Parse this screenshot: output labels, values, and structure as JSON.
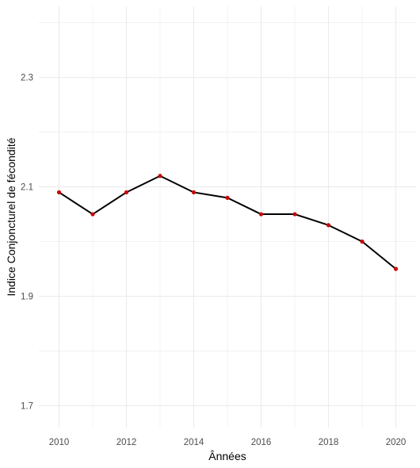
{
  "chart_data": {
    "type": "line",
    "title": "",
    "xlabel": "Ânnées",
    "ylabel": "Indice Conjoncturel de fécondité",
    "x": [
      2010,
      2011,
      2012,
      2013,
      2014,
      2015,
      2016,
      2017,
      2018,
      2019,
      2020
    ],
    "series": [
      {
        "values": [
          2.09,
          2.05,
          2.09,
          2.12,
          2.09,
          2.08,
          2.05,
          2.05,
          2.03,
          2.0,
          1.95
        ]
      }
    ],
    "xlim": [
      2009.4,
      2020.6
    ],
    "ylim": [
      1.66,
      2.43
    ],
    "x_ticks": [
      2010,
      2012,
      2014,
      2016,
      2018,
      2020
    ],
    "x_tick_labels": [
      "2010",
      "2012",
      "2014",
      "2016",
      "2018",
      "2020"
    ],
    "y_ticks": [
      1.7,
      1.9,
      2.1,
      2.3
    ],
    "y_tick_labels": [
      "1.7",
      "1.9",
      "2.1",
      "2.3"
    ],
    "grid": true,
    "legend": "none",
    "colors": {
      "line": "#000000",
      "points": "#cc0000",
      "grid": "#ebebeb",
      "background": "#ffffff"
    }
  }
}
